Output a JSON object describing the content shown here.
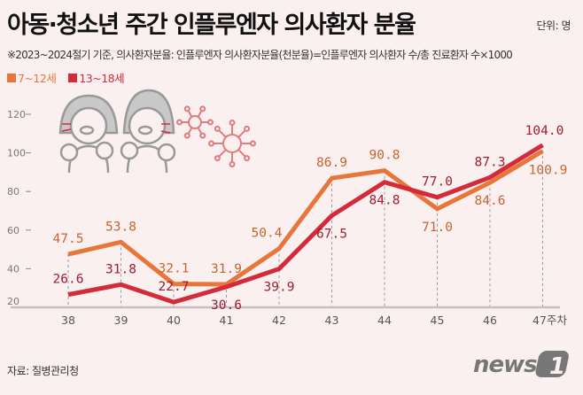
{
  "title": "아동·청소년 주간 인플루엔자 의사환자 분율",
  "unit": "단위: 명",
  "note": "※2023~2024절기 기준, 의사환자분율: 인플루엔자 의사환자분율(천분율)=인플루엔자 의사환자 수/총 진료환자 수×1000",
  "source": "자료: 질병관리청",
  "logo_text": "news1",
  "chart_data": {
    "type": "line",
    "categories": [
      "38",
      "39",
      "40",
      "41",
      "42",
      "43",
      "44",
      "45",
      "46",
      "47주차"
    ],
    "yticks": [
      20,
      40,
      60,
      80,
      100,
      120
    ],
    "ylim": [
      20,
      120
    ],
    "grid": false,
    "legend_placement": "top-left",
    "series": [
      {
        "name": "7~12세",
        "color": "#e8763a",
        "label_color": "#c8642e",
        "values": [
          47.5,
          53.8,
          32.1,
          31.9,
          50.4,
          86.9,
          90.8,
          71.0,
          84.6,
          100.9
        ]
      },
      {
        "name": "13~18세",
        "color": "#d42a3a",
        "label_color": "#a01c30",
        "values": [
          26.6,
          31.8,
          22.7,
          30.6,
          39.9,
          67.5,
          84.8,
          77.0,
          87.3,
          104.0
        ]
      }
    ]
  },
  "illustration": {
    "icons": [
      "coughing-child-icon",
      "coughing-child-icon",
      "virus-icon",
      "virus-icon"
    ],
    "color": "#999999",
    "virus_color": "#e07b80"
  }
}
